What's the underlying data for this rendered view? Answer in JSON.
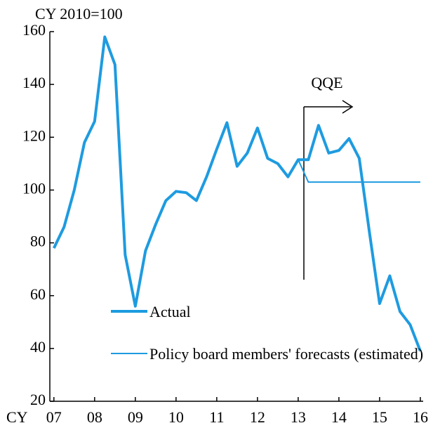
{
  "chart_data": {
    "type": "line",
    "y_label": "CY 2010=100",
    "x_label": "CY",
    "annotation": "QQE",
    "xlim": [
      2006.9,
      2016.07
    ],
    "ylim": [
      20,
      160
    ],
    "yticks": [
      20,
      40,
      60,
      80,
      100,
      120,
      140,
      160
    ],
    "xticks": [
      {
        "value": 2007,
        "label": "07"
      },
      {
        "value": 2008,
        "label": "08"
      },
      {
        "value": 2009,
        "label": "09"
      },
      {
        "value": 2010,
        "label": "10"
      },
      {
        "value": 2011,
        "label": "11"
      },
      {
        "value": 2012,
        "label": "12"
      },
      {
        "value": 2013,
        "label": "13"
      },
      {
        "value": 2014,
        "label": "14"
      },
      {
        "value": 2015,
        "label": "15"
      },
      {
        "value": 2016,
        "label": "16"
      }
    ],
    "series": [
      {
        "name": "Actual",
        "color": "#1e9be0",
        "width": 4,
        "x": [
          2007,
          2007.25,
          2007.5,
          2007.75,
          2008,
          2008.25,
          2008.5,
          2008.75,
          2009,
          2009.25,
          2009.5,
          2009.75,
          2010,
          2010.25,
          2010.5,
          2010.75,
          2011,
          2011.25,
          2011.5,
          2011.75,
          2012,
          2012.25,
          2012.5,
          2012.75,
          2013,
          2013.25,
          2013.5,
          2013.75,
          2014,
          2014.25,
          2014.5,
          2014.75,
          2015,
          2015.25,
          2015.5,
          2015.75,
          2016
        ],
        "values": [
          78,
          86,
          100,
          118,
          126,
          158,
          147.5,
          75.5,
          56,
          77,
          87,
          96,
          99.5,
          99,
          96,
          105,
          115.5,
          125.5,
          109,
          114,
          123.5,
          112,
          110,
          105,
          111.5,
          111.5,
          124.5,
          114,
          115,
          119.5,
          112,
          84,
          57,
          67.5,
          54,
          49,
          39
        ]
      },
      {
        "name": "Policy board members' forecasts (estimated)",
        "color": "#1e9be0",
        "width": 2,
        "x": [
          2013,
          2013.25,
          2016
        ],
        "values": [
          111.5,
          103,
          103
        ]
      }
    ]
  }
}
